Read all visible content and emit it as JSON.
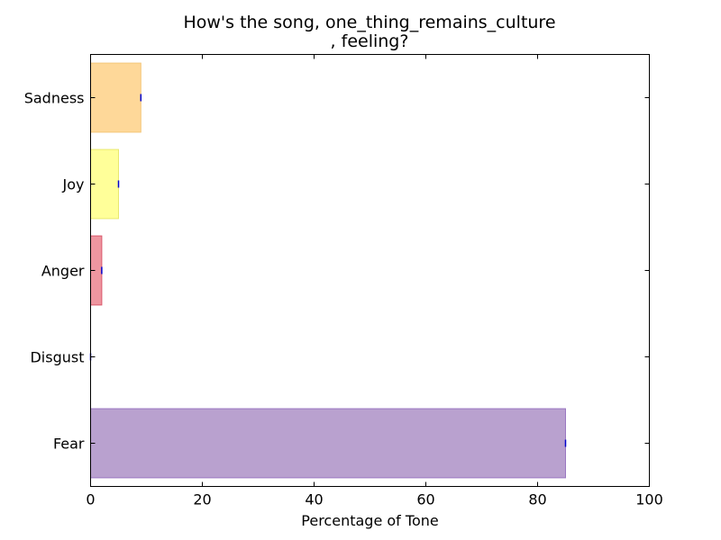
{
  "chart_data": {
    "type": "bar",
    "orientation": "horizontal",
    "title": "How's the song, one_thing_remains_culture\n, feeling?",
    "xlabel": "Percentage of Tone",
    "ylabel": "",
    "xlim": [
      0,
      100
    ],
    "xticks": [
      0,
      20,
      40,
      60,
      80,
      100
    ],
    "categories": [
      "Fear",
      "Disgust",
      "Anger",
      "Joy",
      "Sadness"
    ],
    "values": [
      85,
      0,
      2,
      5,
      9
    ],
    "colors": [
      "#b9a1cf",
      "#7fbf7f",
      "#ee96a0",
      "#ffff99",
      "#fed899"
    ],
    "edge_colors": [
      "#9b78c2",
      "#5fae5f",
      "#d9586a",
      "#e8e870",
      "#f3c77a"
    ],
    "error_marker_color": "#0000cc",
    "grid": false,
    "legend": false
  }
}
